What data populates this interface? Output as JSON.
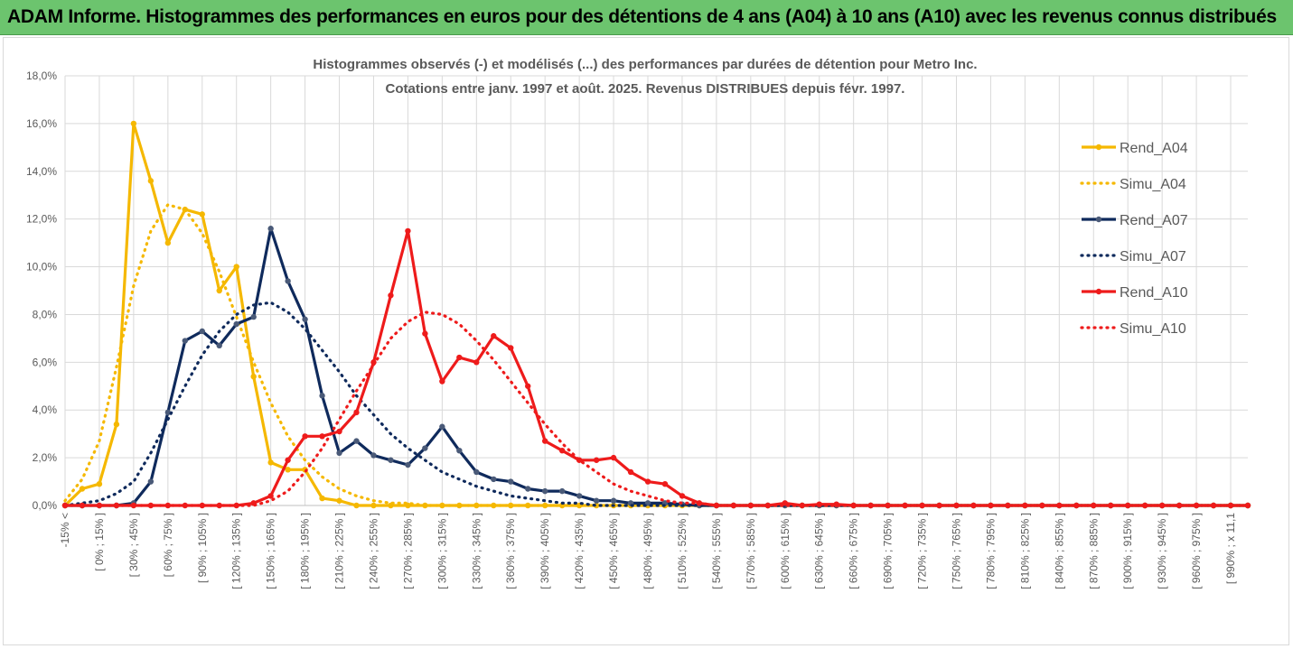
{
  "page": {
    "title": "ADAM Informe. Histogrammes des performances en euros pour des détentions de 4 ans (A04) à 10 ans (A10) avec les revenus connus distribués"
  },
  "chart_data": {
    "type": "line",
    "title": "Histogrammes observés (-) et modélisés (...) des performances par durées de détention pour Metro Inc.",
    "subtitle": "Cotations entre janv. 1997 et août. 2025. Revenus DISTRIBUES depuis févr. 1997.",
    "xlabel": "",
    "ylabel": "",
    "ylim": [
      0,
      18
    ],
    "y_ticks": [
      "0,0%",
      "2,0%",
      "4,0%",
      "6,0%",
      "8,0%",
      "10,0%",
      "12,0%",
      "14,0%",
      "16,0%",
      "18,0%"
    ],
    "grid": true,
    "legend_position": "right",
    "x_tick_labels": [
      "-15% <",
      "[ 0% ; 15% ]",
      "[ 30% ; 45% ]",
      "[ 60% ; 75% ]",
      "[ 90% ; 105% ]",
      "[ 120% ; 135% ]",
      "[ 150% ; 165% ]",
      "[ 180% ; 195% ]",
      "[ 210% ; 225% ]",
      "[ 240% ; 255% ]",
      "[ 270% ; 285% ]",
      "[ 300% ; 315% ]",
      "[ 330% ; 345% ]",
      "[ 360% ; 375% ]",
      "[ 390% ; 405% ]",
      "[ 420% ; 435% ]",
      "[ 450% ; 465% ]",
      "[ 480% ; 495% ]",
      "[ 510% ; 525% ]",
      "[ 540% ; 555% ]",
      "[ 570% ; 585% ]",
      "[ 600% ; 615% ]",
      "[ 630% ; 645% ]",
      "[ 660% ; 675% ]",
      "[ 690% ; 705% ]",
      "[ 720% ; 735% ]",
      "[ 750% ; 765% ]",
      "[ 780% ; 795% ]",
      "[ 810% ; 825% ]",
      "[ 840% ; 855% ]",
      "[ 870% ; 885% ]",
      "[ 900% ; 915% ]",
      "[ 930% ; 945% ]",
      "[ 960% ; 975% ]",
      "[ 990% ; x 11,1"
    ],
    "series": [
      {
        "name": "Rend_A04",
        "style": "solid",
        "color": "#f5b800",
        "values": [
          0.0,
          0.7,
          0.9,
          3.4,
          16.0,
          13.6,
          11.0,
          12.4,
          12.2,
          9.0,
          10.0,
          5.4,
          1.8,
          1.5,
          1.5,
          0.3,
          0.2,
          0,
          0,
          0,
          0,
          0,
          0,
          0,
          0,
          0,
          0,
          0,
          0,
          0,
          0,
          0,
          0,
          0,
          0,
          0,
          0,
          0,
          0,
          0,
          0,
          0,
          0,
          0,
          0,
          0,
          0,
          0,
          0,
          0,
          0,
          0,
          0,
          0,
          0,
          0,
          0,
          0,
          0,
          0,
          0,
          0,
          0,
          0,
          0,
          0,
          0,
          0,
          0,
          0
        ]
      },
      {
        "name": "Simu_A04",
        "style": "dotted",
        "color": "#f5b800",
        "values": [
          0.2,
          1.1,
          2.7,
          5.8,
          9.2,
          11.5,
          12.6,
          12.4,
          11.4,
          9.8,
          7.9,
          6.0,
          4.3,
          2.9,
          1.9,
          1.2,
          0.7,
          0.4,
          0.2,
          0.1,
          0.1,
          0,
          0,
          0,
          0,
          0,
          0,
          0,
          0,
          0,
          0,
          0,
          0,
          0,
          0,
          0,
          0,
          0,
          0,
          0,
          0,
          0,
          0,
          0,
          0,
          0,
          0,
          0,
          0,
          0,
          0,
          0,
          0,
          0,
          0,
          0,
          0,
          0,
          0,
          0,
          0,
          0,
          0,
          0,
          0,
          0,
          0,
          0,
          0,
          0
        ]
      },
      {
        "name": "Rend_A07",
        "style": "solid",
        "color": "#0f2a5c",
        "values": [
          0,
          0,
          0,
          0,
          0.1,
          1.0,
          3.9,
          6.9,
          7.3,
          6.7,
          7.6,
          7.9,
          11.6,
          9.4,
          7.8,
          4.6,
          2.2,
          2.7,
          2.1,
          1.9,
          1.7,
          2.4,
          3.3,
          2.3,
          1.4,
          1.1,
          1.0,
          0.7,
          0.6,
          0.6,
          0.4,
          0.2,
          0.2,
          0.1,
          0.1,
          0.1,
          0.05,
          0,
          0,
          0,
          0,
          0,
          0,
          0,
          0,
          0,
          0,
          0,
          0,
          0,
          0,
          0,
          0,
          0,
          0,
          0,
          0,
          0,
          0,
          0,
          0,
          0,
          0,
          0,
          0,
          0,
          0,
          0,
          0,
          0
        ]
      },
      {
        "name": "Simu_A07",
        "style": "dotted",
        "color": "#0f2a5c",
        "values": [
          0,
          0.1,
          0.2,
          0.5,
          1.0,
          2.2,
          3.6,
          5.0,
          6.3,
          7.3,
          8.0,
          8.4,
          8.5,
          8.1,
          7.4,
          6.5,
          5.6,
          4.6,
          3.8,
          3.0,
          2.4,
          1.9,
          1.4,
          1.1,
          0.8,
          0.6,
          0.4,
          0.3,
          0.2,
          0.1,
          0.1,
          0,
          0,
          0,
          0,
          0,
          0,
          0,
          0,
          0,
          0,
          0,
          0,
          0,
          0,
          0,
          0,
          0,
          0,
          0,
          0,
          0,
          0,
          0,
          0,
          0,
          0,
          0,
          0,
          0,
          0,
          0,
          0,
          0,
          0,
          0,
          0,
          0,
          0,
          0
        ]
      },
      {
        "name": "Rend_A10",
        "style": "solid",
        "color": "#ee1b1b",
        "values": [
          0,
          0,
          0,
          0,
          0,
          0,
          0,
          0,
          0,
          0,
          0,
          0.1,
          0.4,
          1.9,
          2.9,
          2.9,
          3.1,
          3.9,
          6.0,
          8.8,
          11.5,
          7.2,
          5.2,
          6.2,
          6.0,
          7.1,
          6.6,
          5.0,
          2.7,
          2.3,
          1.9,
          1.9,
          2.0,
          1.4,
          1.0,
          0.9,
          0.4,
          0.1,
          0,
          0,
          0,
          0,
          0.1,
          0,
          0.05,
          0.05,
          0,
          0,
          0,
          0,
          0,
          0,
          0,
          0,
          0,
          0,
          0,
          0,
          0,
          0,
          0,
          0,
          0,
          0,
          0,
          0,
          0,
          0,
          0,
          0
        ]
      },
      {
        "name": "Simu_A10",
        "style": "dotted",
        "color": "#ee1b1b",
        "values": [
          0,
          0,
          0,
          0,
          0,
          0,
          0,
          0,
          0,
          0,
          0,
          0,
          0.2,
          0.6,
          1.4,
          2.4,
          3.6,
          4.8,
          5.9,
          7.0,
          7.7,
          8.1,
          8.0,
          7.6,
          6.9,
          6.1,
          5.2,
          4.3,
          3.4,
          2.6,
          1.9,
          1.4,
          0.9,
          0.6,
          0.4,
          0.2,
          0.1,
          0.1,
          0,
          0,
          0,
          0,
          0,
          0,
          0,
          0,
          0,
          0,
          0,
          0,
          0,
          0,
          0,
          0,
          0,
          0,
          0,
          0,
          0,
          0,
          0,
          0,
          0,
          0,
          0,
          0,
          0,
          0,
          0,
          0
        ]
      }
    ]
  }
}
